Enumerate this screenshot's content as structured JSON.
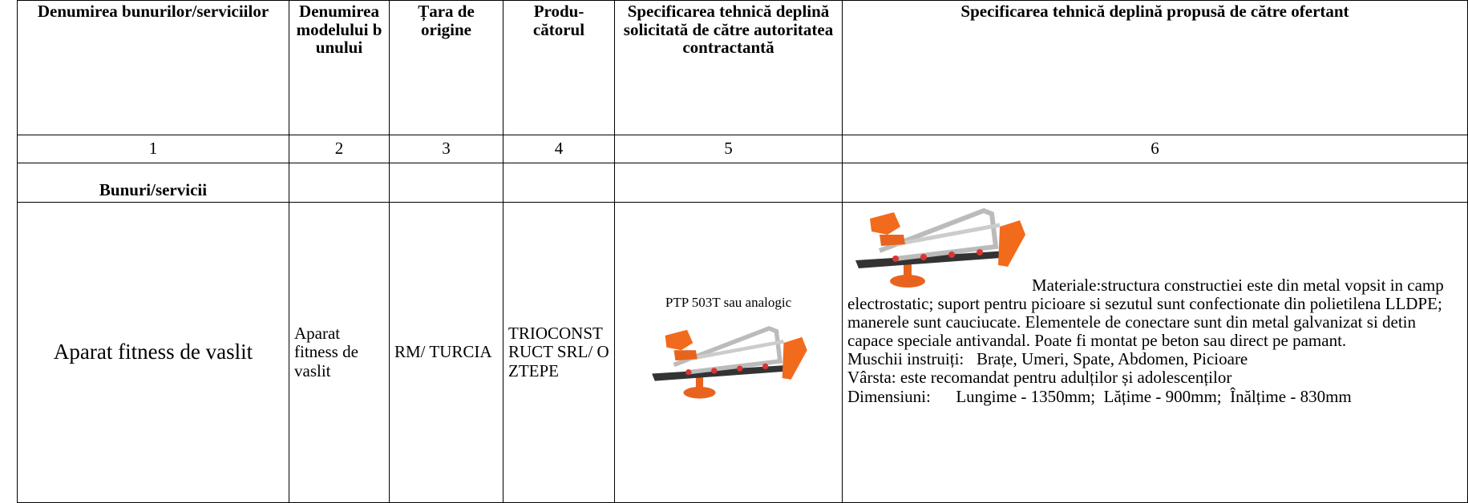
{
  "table": {
    "headers": [
      "Denumirea bunurilor/serviciilor",
      "Denumirea modelului bunului",
      "Țara de origine",
      "Produ-cătorul",
      "Specificarea tehnică deplină solicitată de către autoritatea contractantă",
      "Specificarea tehnică deplină propusă de către ofertant"
    ],
    "numbers": [
      "1",
      "2",
      "3",
      "4",
      "5",
      "6"
    ],
    "section": "Bunuri/servicii",
    "item": {
      "name": "Aparat fitness de vaslit",
      "model": "Aparat fitness de vaslit",
      "origin": "RM/ TURCIA",
      "producer": "TRIOCONSTRUCT SRL/ OZTEPE",
      "requested": "PTP 503T sau analogic",
      "offered": [
        "Materiale:structura constructiei este din metal vopsit in camp electrostatic; suport pentru picioare si sezutul sunt confectionate din polietilena LLDPE; manerele sunt cauciucate. Elementele de conectare sunt din metal galvanizat si detin capace speciale antivandal. Poate fi montat pe beton sau direct pe pamant.",
        "Muschii instruiți:   Brațe, Umeri, Spate, Abdomen, Picioare",
        "Vârsta: este recomandat pentru adulților și adolescenților",
        "Dimensiuni:      Lungime - 1350mm;  Lățime - 900mm;  Înălțime - 830mm"
      ]
    }
  }
}
